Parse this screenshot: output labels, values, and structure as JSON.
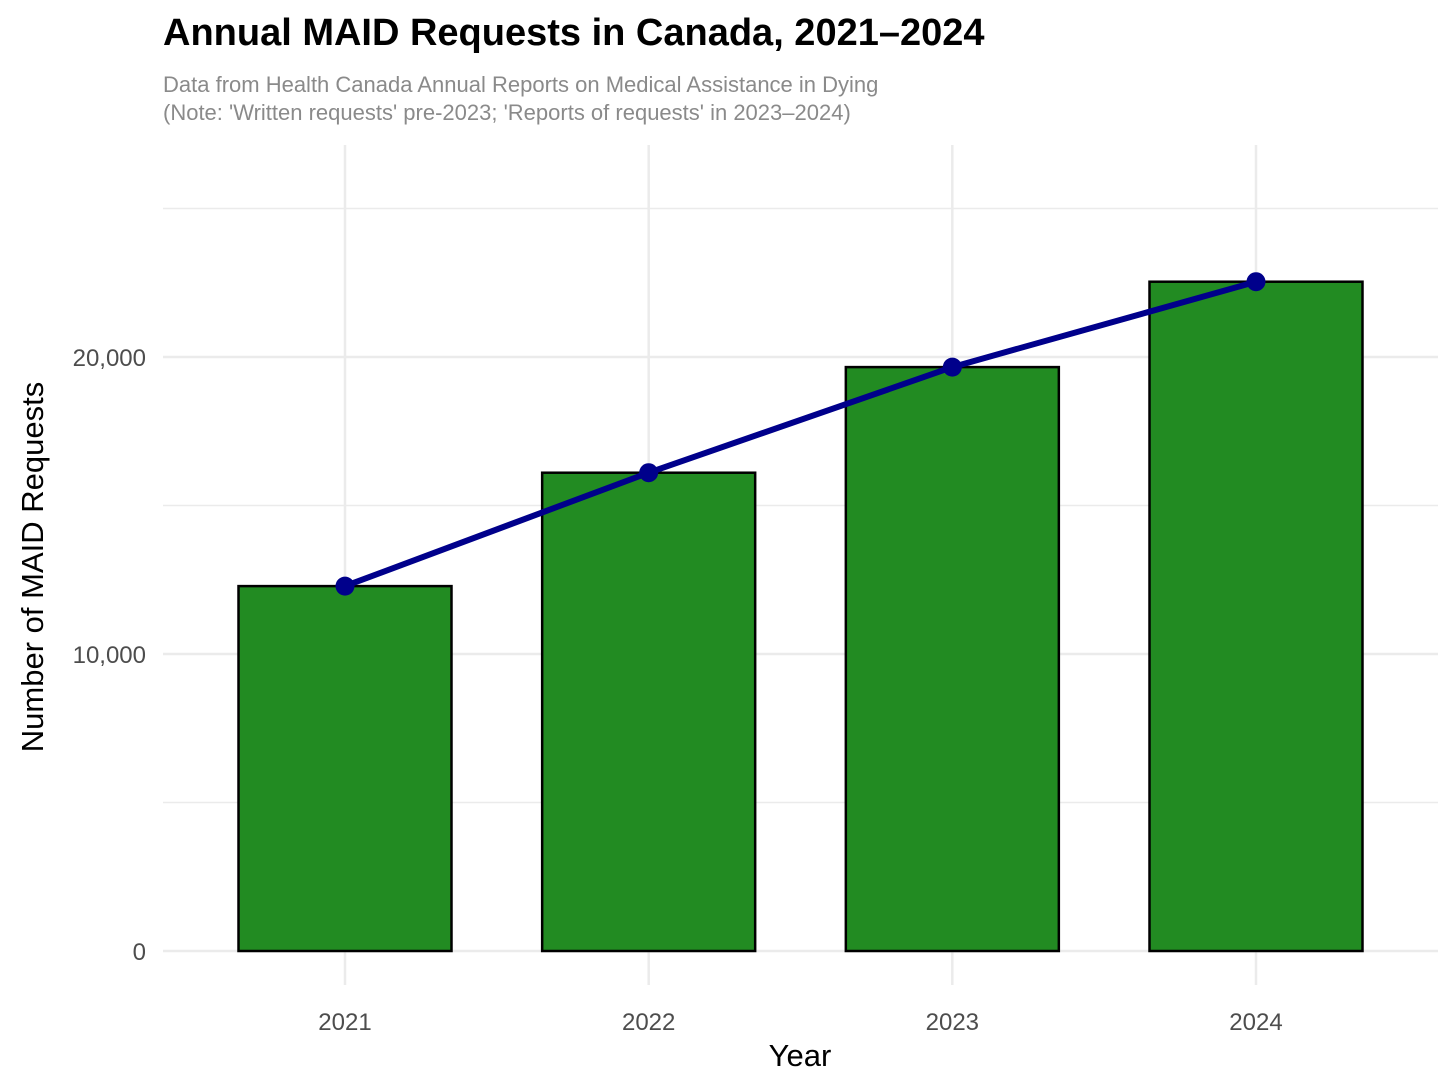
{
  "chart_data": {
    "type": "bar",
    "title": "Annual MAID Requests in Canada, 2021–2024",
    "subtitle_lines": [
      "Data from Health Canada Annual Reports on Medical Assistance in Dying",
      "(Note: 'Written requests' pre-2023; 'Reports of requests' in 2023–2024)"
    ],
    "xlabel": "Year",
    "ylabel": "Number of MAID Requests",
    "categories": [
      "2021",
      "2022",
      "2023",
      "2024"
    ],
    "values": [
      12286,
      16104,
      19660,
      22535
    ],
    "overlay": {
      "type": "line",
      "values": [
        12286,
        16104,
        19660,
        22535
      ]
    },
    "ylim": [
      0,
      26500
    ],
    "y_ticks": [
      0,
      10000,
      20000
    ],
    "y_tick_labels": [
      "0",
      "10,000",
      "20,000"
    ],
    "grid": true,
    "colors": {
      "bar_fill": "#228B22",
      "bar_stroke": "#000000",
      "line": "#00008B",
      "grid": "#ebebeb"
    }
  }
}
